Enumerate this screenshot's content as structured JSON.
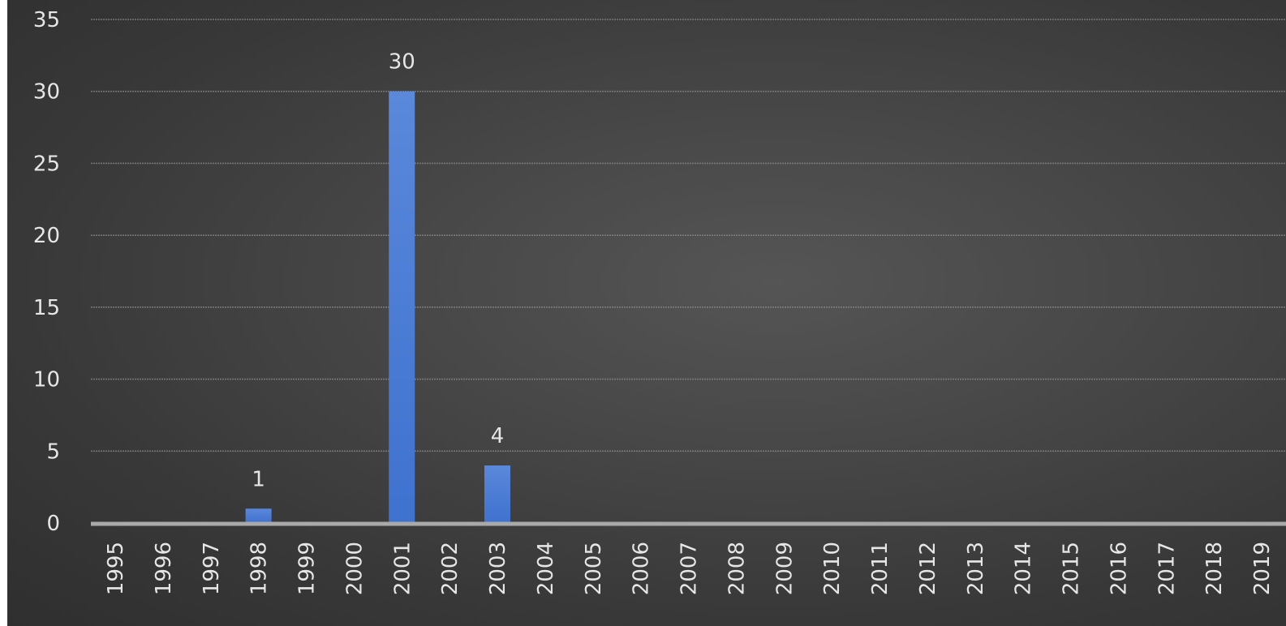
{
  "chart_data": {
    "type": "bar",
    "categories": [
      "1995",
      "1996",
      "1997",
      "1998",
      "1999",
      "2000",
      "2001",
      "2002",
      "2003",
      "2004",
      "2005",
      "2006",
      "2007",
      "2008",
      "2009",
      "2010",
      "2011",
      "2012",
      "2013",
      "2014",
      "2015",
      "2016",
      "2017",
      "2018",
      "2019"
    ],
    "values": [
      0,
      0,
      0,
      1,
      0,
      0,
      30,
      0,
      4,
      0,
      0,
      0,
      0,
      0,
      0,
      0,
      0,
      0,
      0,
      0,
      0,
      0,
      0,
      0,
      0
    ],
    "data_labels": [
      "",
      "",
      "",
      "1",
      "",
      "",
      "30",
      "",
      "4",
      "",
      "",
      "",
      "",
      "",
      "",
      "",
      "",
      "",
      "",
      "",
      "",
      "",
      "",
      "",
      ""
    ],
    "ylim": [
      0,
      35
    ],
    "yticks": [
      0,
      5,
      10,
      15,
      20,
      25,
      30,
      35
    ],
    "grid": true,
    "title": "",
    "xlabel": "",
    "ylabel": "",
    "legend": "none",
    "colors": {
      "bar": "#3f72cf",
      "bar_top": "#5a88da",
      "background": "#404040",
      "grid": "#8a8a8a",
      "axis": "#a9a9a9",
      "text": "#e6e6e6"
    }
  }
}
